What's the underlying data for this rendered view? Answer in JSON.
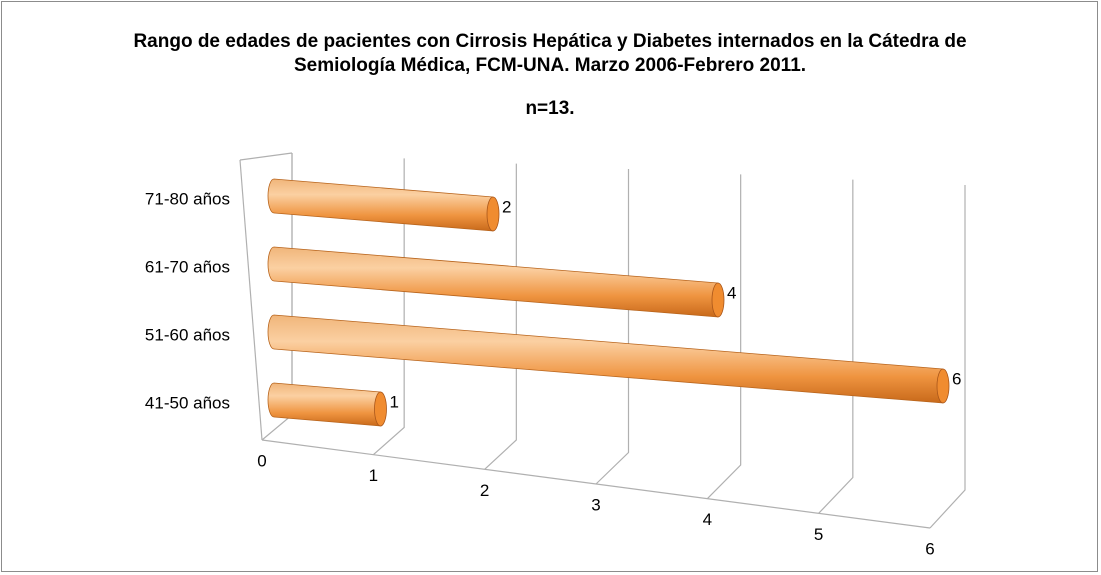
{
  "chart_data": {
    "type": "bar",
    "orientation": "horizontal",
    "title": "Rango de edades de pacientes con Cirrosis Hepática y Diabetes internados en la Cátedra de Semiología Médica, FCM-UNA. Marzo 2006-Febrero 2011.",
    "subtitle": "n=13.",
    "categories": [
      "41-50 años",
      "51-60 años",
      "61-70 años",
      "71-80 años"
    ],
    "values": [
      1,
      6,
      4,
      2
    ],
    "color": "#f08c30",
    "xlim": [
      0,
      6
    ],
    "xticks": [
      0,
      1,
      2,
      3,
      4,
      5,
      6
    ],
    "grid": true
  }
}
